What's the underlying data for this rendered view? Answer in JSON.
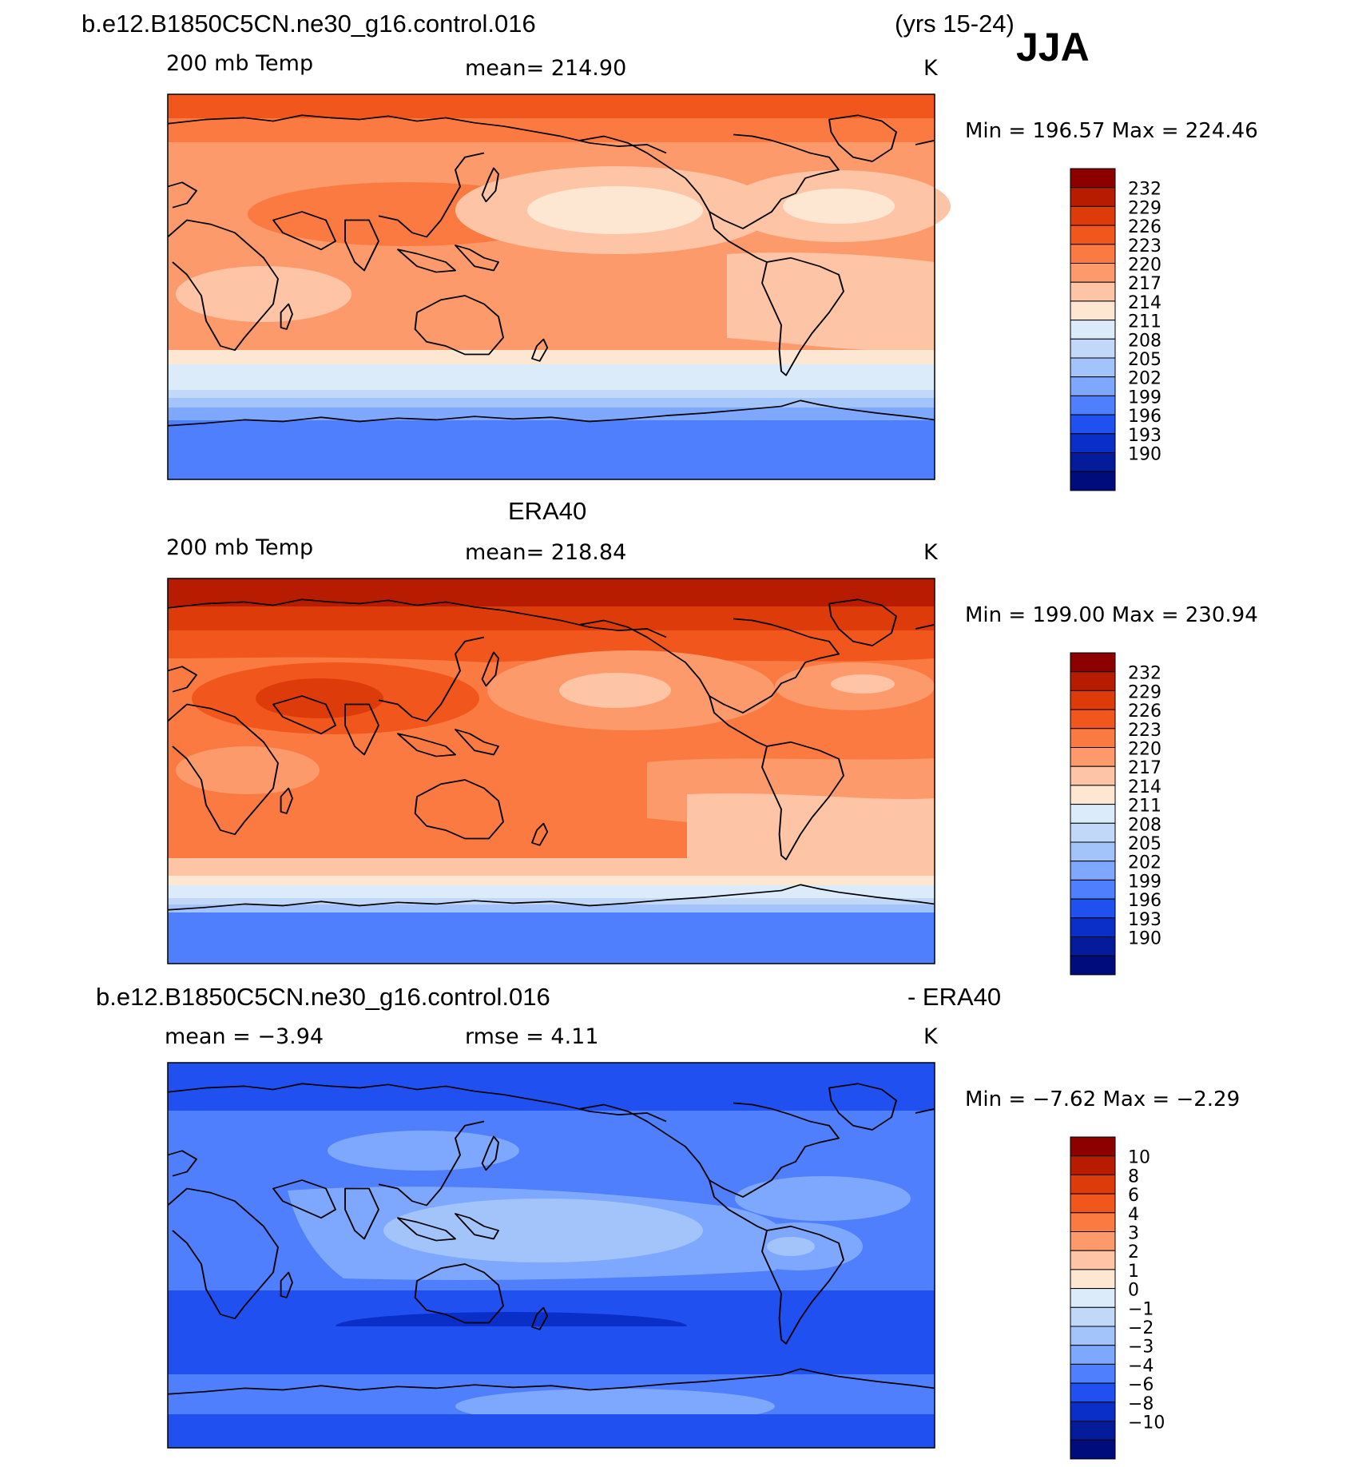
{
  "header": {
    "case_title": "b.e12.B1850C5CN.ne30_g16.control.016",
    "years": "(yrs 15-24)",
    "season": "JJA"
  },
  "panels": [
    {
      "id": "model",
      "title": "",
      "variable": "200 mb Temp",
      "stat": "mean=  214.90",
      "units": "K",
      "minmax": "Min  =  196.57  Max  =  224.46"
    },
    {
      "id": "obs",
      "title": "ERA40",
      "variable": "200 mb Temp",
      "stat": "mean=  218.84",
      "units": "K",
      "minmax": "Min  =  199.00  Max  =  230.94"
    },
    {
      "id": "diff",
      "title_left": "b.e12.B1850C5CN.ne30_g16.control.016",
      "title_right": "- ERA40",
      "variable": "mean  =    −3.94",
      "stat": "rmse  =      4.11",
      "units": "K",
      "minmax": "Min  =    −7.62  Max  =    −2.29"
    }
  ],
  "colorbars": {
    "temp": {
      "labels": [
        "232",
        "229",
        "226",
        "223",
        "220",
        "217",
        "214",
        "211",
        "208",
        "205",
        "202",
        "199",
        "196",
        "193",
        "190"
      ],
      "colors": [
        "#8c0000",
        "#b81c00",
        "#dd3b0a",
        "#f1571c",
        "#fb7a42",
        "#fc9a6b",
        "#fdc5a6",
        "#fde7d2",
        "#dcebfa",
        "#c1d8f9",
        "#a3c3fb",
        "#7ea8fd",
        "#4f7ffc",
        "#2050ef",
        "#0a2fc8",
        "#041b9b",
        "#000c7c"
      ]
    },
    "diff": {
      "labels": [
        "10",
        "8",
        "6",
        "4",
        "3",
        "2",
        "1",
        "0",
        "−1",
        "−2",
        "−3",
        "−4",
        "−6",
        "−8",
        "−10"
      ],
      "colors": [
        "#8c0000",
        "#b81c00",
        "#dd3b0a",
        "#f1571c",
        "#fb7a42",
        "#fc9a6b",
        "#fdc5a6",
        "#fde7d2",
        "#dcebfa",
        "#c1d8f9",
        "#a3c3fb",
        "#7ea8fd",
        "#4f7ffc",
        "#2050ef",
        "#0a2fc8",
        "#041b9b",
        "#000c7c"
      ]
    }
  }
}
